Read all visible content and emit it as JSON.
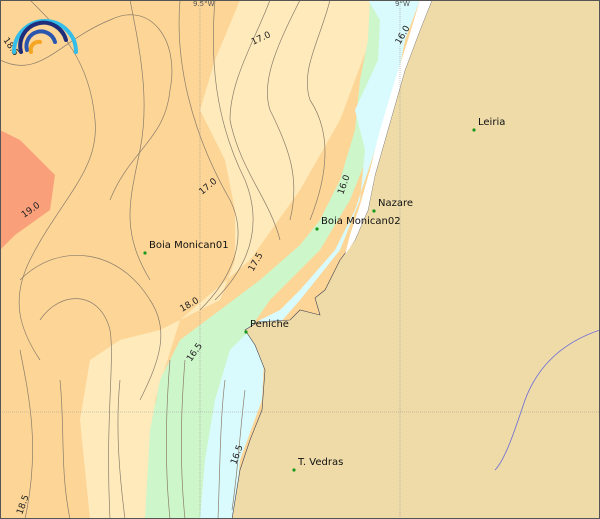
{
  "map": {
    "grid_labels": [
      {
        "text": "9.5°W"
      },
      {
        "text": "9°W"
      }
    ],
    "places": [
      {
        "name": "Leiria"
      },
      {
        "name": "Nazare"
      },
      {
        "name": "Boia Monican02"
      },
      {
        "name": "Boia Monican01"
      },
      {
        "name": "Peniche"
      },
      {
        "name": "T. Vedras"
      }
    ],
    "contour_labels": [
      "18.5",
      "17.0",
      "16.0",
      "17.0",
      "19.0",
      "16.0",
      "17.5",
      "18.0",
      "16.5",
      "18.5",
      "16.5"
    ],
    "colors": {
      "land": "#eedba8",
      "warmest": "#f9a07a",
      "warm": "#fdd596",
      "mild": "#feeabb",
      "cool": "#cdf6ca",
      "coolest": "#dafbfd",
      "place_dot": "#1a9a1a",
      "contour": "#8a7d6a"
    },
    "logo_icon": "wave-arcs-logo"
  }
}
